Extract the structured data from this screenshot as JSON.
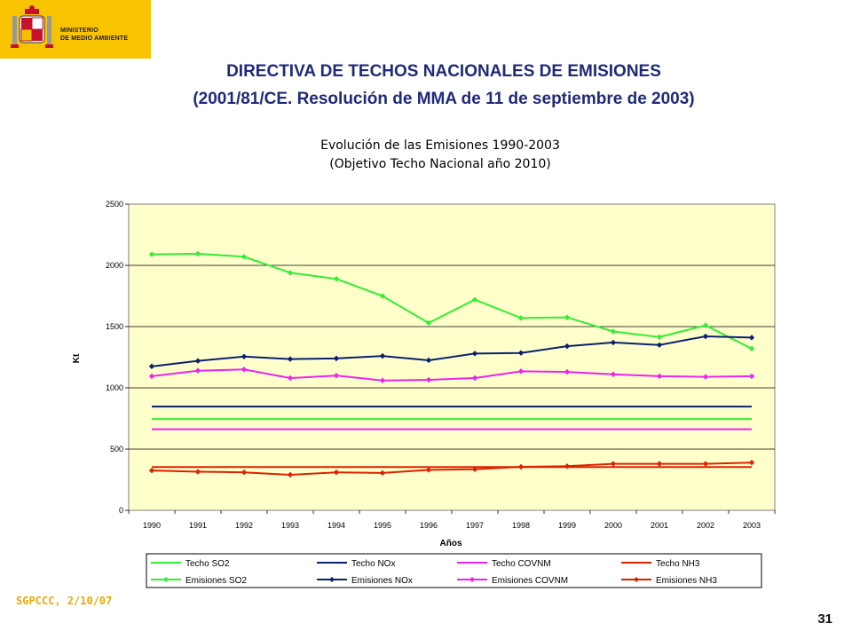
{
  "header": {
    "logo_line1": "MINISTERIO",
    "logo_line2": "DE MEDIO AMBIENTE",
    "title_line1": "DIRECTIVA DE TECHOS NACIONALES DE EMISIONES",
    "title_line2": "(2001/81/CE. Resolución de MMA de 11 de septiembre de 2003)"
  },
  "footer": {
    "left": "SGPCCC, 2/10/07",
    "page_number": "31"
  },
  "colors": {
    "logo_background": "#f8c300",
    "plot_background": "#ffffcc",
    "so2": "#33ee33",
    "nox": "#0a1f6e",
    "covnm": "#ee22ee",
    "nh3": "#dd2200"
  },
  "chart_data": {
    "type": "line",
    "title_line1": "Evolución de las Emisiones 1990-2003",
    "title_line2": "(Objetivo Techo Nacional año 2010)",
    "xlabel": "Años",
    "ylabel": "Kt",
    "ylim": [
      0,
      2500
    ],
    "yticks": [
      0,
      500,
      1000,
      1500,
      2000,
      2500
    ],
    "grid": true,
    "legend_position": "bottom",
    "categories": [
      "1990",
      "1991",
      "1992",
      "1993",
      "1994",
      "1995",
      "1996",
      "1997",
      "1998",
      "1999",
      "2000",
      "2001",
      "2002",
      "2003"
    ],
    "series": [
      {
        "name": "Techo SO2",
        "color": "#33ee33",
        "marker": false,
        "values": [
          746,
          746,
          746,
          746,
          746,
          746,
          746,
          746,
          746,
          746,
          746,
          746,
          746,
          746
        ]
      },
      {
        "name": "Techo NOx",
        "color": "#0a1f6e",
        "marker": false,
        "values": [
          847,
          847,
          847,
          847,
          847,
          847,
          847,
          847,
          847,
          847,
          847,
          847,
          847,
          847
        ]
      },
      {
        "name": "Techo COVNM",
        "color": "#ee22ee",
        "marker": false,
        "values": [
          662,
          662,
          662,
          662,
          662,
          662,
          662,
          662,
          662,
          662,
          662,
          662,
          662,
          662
        ]
      },
      {
        "name": "Techo NH3",
        "color": "#dd2200",
        "marker": false,
        "values": [
          353,
          353,
          353,
          353,
          353,
          353,
          353,
          353,
          353,
          353,
          353,
          353,
          353,
          353
        ]
      },
      {
        "name": "Emisiones SO2",
        "color": "#33ee33",
        "marker": true,
        "values": [
          2090,
          2095,
          2070,
          1940,
          1890,
          1750,
          1530,
          1720,
          1570,
          1575,
          1460,
          1415,
          1510,
          1320
        ]
      },
      {
        "name": "Emisiones NOx",
        "color": "#0a1f6e",
        "marker": true,
        "values": [
          1175,
          1220,
          1255,
          1235,
          1240,
          1260,
          1225,
          1280,
          1285,
          1340,
          1370,
          1350,
          1420,
          1410
        ]
      },
      {
        "name": "Emisiones COVNM",
        "color": "#ee22ee",
        "marker": true,
        "values": [
          1095,
          1140,
          1150,
          1080,
          1100,
          1060,
          1065,
          1080,
          1135,
          1130,
          1110,
          1095,
          1090,
          1095
        ]
      },
      {
        "name": "Emisiones NH3",
        "color": "#dd2200",
        "marker": true,
        "values": [
          325,
          315,
          310,
          290,
          310,
          305,
          330,
          335,
          355,
          360,
          380,
          380,
          380,
          390
        ]
      }
    ]
  }
}
